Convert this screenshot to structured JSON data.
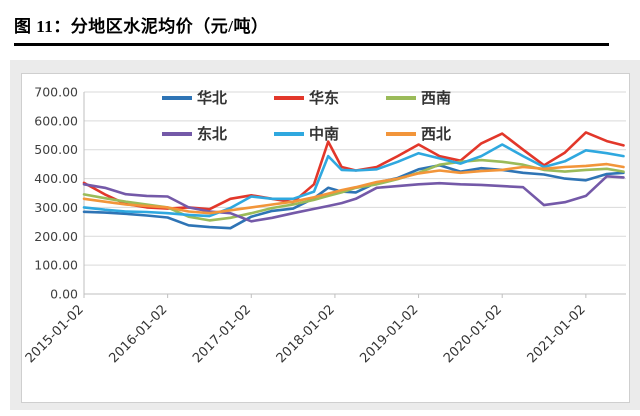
{
  "header": {
    "title": "图 11：分地区水泥均价（元/吨）"
  },
  "chart_data": {
    "type": "line",
    "title": "分地区水泥均价（元/吨）",
    "ylabel": "",
    "xlabel": "",
    "ylim": [
      0,
      700
    ],
    "y_ticks": [
      0,
      100,
      200,
      300,
      400,
      500,
      600,
      700
    ],
    "y_tick_labels": [
      "0.00",
      "100.00",
      "200.00",
      "300.00",
      "400.00",
      "500.00",
      "600.00",
      "700.00"
    ],
    "x_range": [
      2015.0,
      2021.48
    ],
    "x_tick_values": [
      2015,
      2016,
      2017,
      2018,
      2019,
      2020,
      2021
    ],
    "x_tick_labels": [
      "2015-01-02",
      "2016-01-02",
      "2017-01-02",
      "2018-01-02",
      "2019-01-02",
      "2020-01-02",
      "2021-01-02"
    ],
    "grid": true,
    "legend_position": "top-center-inside",
    "x_samples": [
      2015.0,
      2015.25,
      2015.5,
      2015.75,
      2016.0,
      2016.25,
      2016.5,
      2016.75,
      2017.0,
      2017.25,
      2017.5,
      2017.75,
      2017.92,
      2018.08,
      2018.25,
      2018.5,
      2018.75,
      2019.0,
      2019.25,
      2019.5,
      2019.75,
      2020.0,
      2020.25,
      2020.5,
      2020.75,
      2021.0,
      2021.25,
      2021.45
    ],
    "series": [
      {
        "name": "华北",
        "color": "#2E74B5",
        "values": [
          285,
          282,
          278,
          272,
          265,
          238,
          232,
          228,
          268,
          288,
          296,
          332,
          368,
          355,
          352,
          386,
          402,
          432,
          446,
          424,
          436,
          430,
          420,
          414,
          400,
          394,
          416,
          420
        ]
      },
      {
        "name": "华东",
        "color": "#E2372A",
        "values": [
          385,
          345,
          312,
          300,
          296,
          300,
          294,
          330,
          342,
          330,
          318,
          380,
          528,
          440,
          428,
          440,
          478,
          518,
          478,
          462,
          522,
          556,
          500,
          446,
          490,
          560,
          530,
          515
        ]
      },
      {
        "name": "西南",
        "color": "#9BBB59",
        "values": [
          345,
          332,
          320,
          310,
          300,
          268,
          255,
          264,
          280,
          298,
          310,
          326,
          340,
          352,
          368,
          380,
          398,
          420,
          448,
          458,
          464,
          458,
          448,
          430,
          424,
          430,
          434,
          424
        ]
      },
      {
        "name": "东北",
        "color": "#7459A8",
        "values": [
          380,
          368,
          346,
          340,
          338,
          300,
          286,
          280,
          252,
          264,
          280,
          295,
          305,
          315,
          330,
          368,
          374,
          380,
          384,
          380,
          378,
          374,
          370,
          308,
          318,
          340,
          408,
          404
        ]
      },
      {
        "name": "中南",
        "color": "#2FA8DF",
        "values": [
          300,
          292,
          286,
          284,
          280,
          274,
          270,
          298,
          338,
          330,
          330,
          355,
          478,
          430,
          428,
          432,
          458,
          488,
          470,
          452,
          478,
          518,
          478,
          440,
          460,
          498,
          488,
          478
        ]
      },
      {
        "name": "西北",
        "color": "#F2953A",
        "values": [
          330,
          320,
          310,
          305,
          300,
          286,
          280,
          290,
          300,
          310,
          320,
          335,
          348,
          360,
          370,
          388,
          400,
          418,
          428,
          420,
          426,
          430,
          440,
          434,
          440,
          444,
          450,
          440
        ]
      }
    ]
  }
}
